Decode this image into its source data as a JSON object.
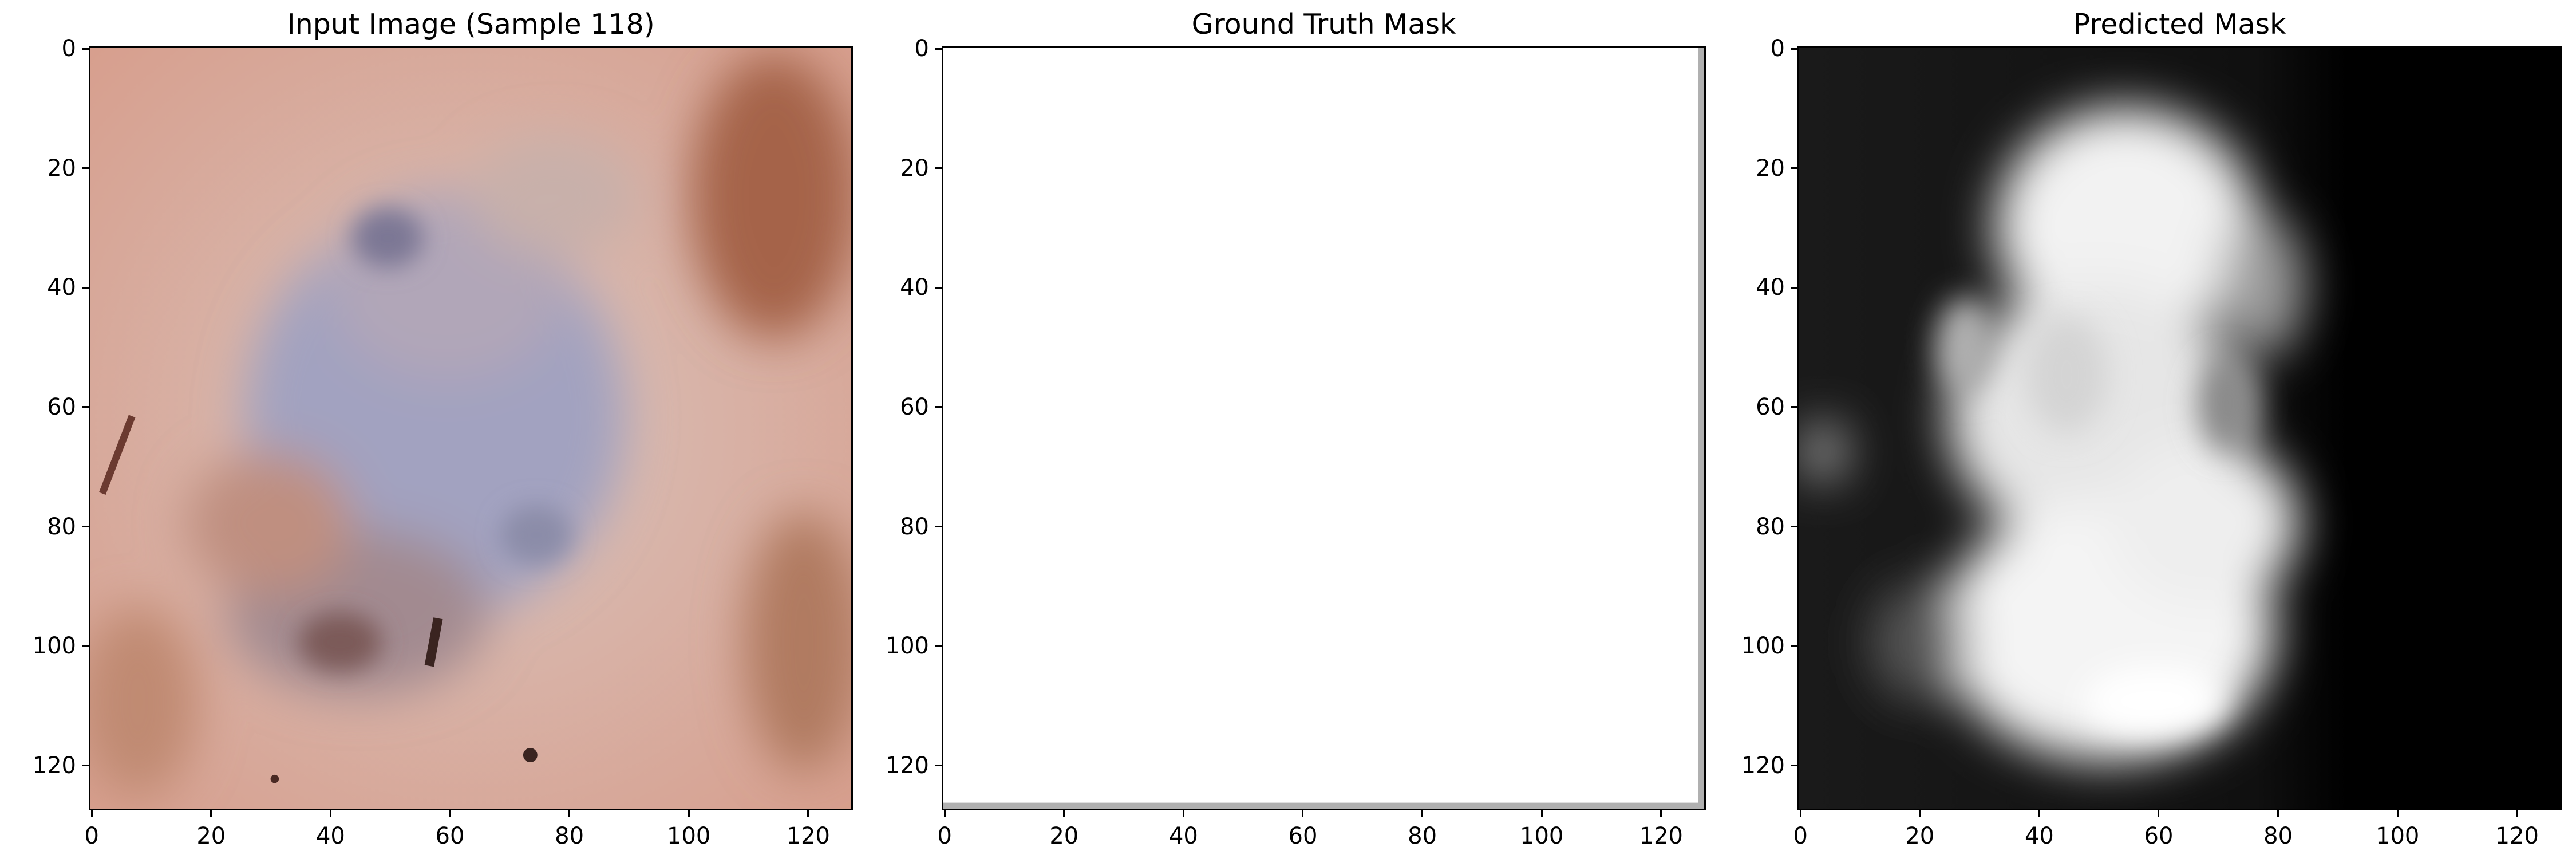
{
  "panels": [
    {
      "title": "Input Image (Sample 118)"
    },
    {
      "title": "Ground Truth Mask"
    },
    {
      "title": "Predicted Mask"
    }
  ],
  "axes": {
    "x_ticks": [
      "0",
      "20",
      "40",
      "60",
      "80",
      "100",
      "120"
    ],
    "y_ticks": [
      "0",
      "20",
      "40",
      "60",
      "80",
      "100",
      "120"
    ],
    "xlim": [
      0,
      128
    ],
    "ylim": [
      128,
      0
    ]
  },
  "colors": {
    "skin": "#d9a99a",
    "lesion": "#9da6c6",
    "mask_white": "#ffffff",
    "mask_black": "#000000"
  }
}
